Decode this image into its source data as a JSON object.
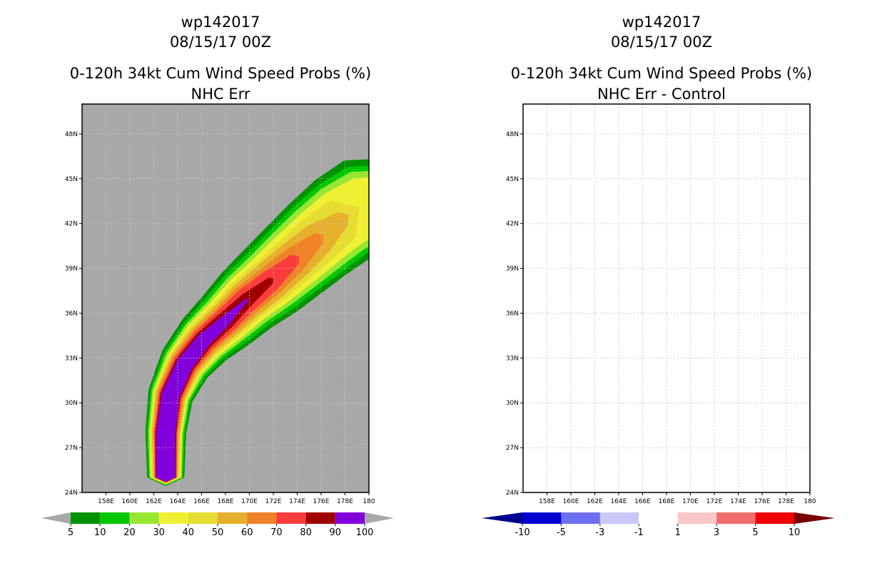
{
  "chart_data": [
    {
      "type": "heatmap",
      "title_lines": [
        "wp142017",
        "08/15/17 00Z",
        "0-120h 34kt Cum Wind Speed Probs (%)",
        "NHC Err"
      ],
      "xlim": [
        156,
        180
      ],
      "ylim": [
        24,
        50
      ],
      "x_ticks": [
        "158E",
        "160E",
        "162E",
        "164E",
        "166E",
        "168E",
        "170E",
        "172E",
        "174E",
        "176E",
        "178E",
        "180"
      ],
      "y_ticks": [
        "24N",
        "27N",
        "30N",
        "33N",
        "36N",
        "39N",
        "42N",
        "45N",
        "48N"
      ],
      "background": "#a8a8a8",
      "track": [
        {
          "lon": 163.0,
          "lat": 25.0
        },
        {
          "lon": 163.0,
          "lat": 28.0
        },
        {
          "lon": 163.4,
          "lat": 30.5
        },
        {
          "lon": 164.6,
          "lat": 32.6
        },
        {
          "lon": 166.2,
          "lat": 34.2
        },
        {
          "lon": 168.0,
          "lat": 35.5
        },
        {
          "lon": 169.8,
          "lat": 36.9
        },
        {
          "lon": 171.8,
          "lat": 38.2
        },
        {
          "lon": 173.8,
          "lat": 39.6
        },
        {
          "lon": 175.8,
          "lat": 41.0
        },
        {
          "lon": 177.8,
          "lat": 42.3
        },
        {
          "lon": 180.0,
          "lat": 43.3
        }
      ],
      "contour_bands": [
        {
          "level": 5,
          "color": "#009100",
          "widths": [
            1.55,
            1.7,
            1.9,
            2.2,
            2.5,
            2.8,
            3.1,
            3.4,
            3.6,
            3.8,
            4.0,
            4.2
          ]
        },
        {
          "level": 10,
          "color": "#00c800",
          "widths": [
            1.45,
            1.6,
            1.75,
            2.0,
            2.2,
            2.5,
            2.75,
            3.0,
            3.2,
            3.4,
            3.5,
            3.6
          ]
        },
        {
          "level": 20,
          "color": "#96e632",
          "widths": [
            1.35,
            1.45,
            1.6,
            1.8,
            2.0,
            2.2,
            2.45,
            2.65,
            2.85,
            3.0,
            3.1,
            3.1
          ]
        },
        {
          "level": 30,
          "color": "#f0f032",
          "widths": [
            1.25,
            1.35,
            1.45,
            1.6,
            1.8,
            1.95,
            2.15,
            2.3,
            2.45,
            2.55,
            2.6,
            2.5
          ]
        },
        {
          "level": 40,
          "color": "#e6dc32",
          "widths": [
            1.15,
            1.25,
            1.35,
            1.45,
            1.6,
            1.7,
            1.85,
            1.95,
            2.0,
            2.05,
            1.9,
            0
          ]
        },
        {
          "level": 50,
          "color": "#e6af2d",
          "widths": [
            1.05,
            1.15,
            1.25,
            1.3,
            1.4,
            1.5,
            1.6,
            1.65,
            1.6,
            1.4,
            0.7,
            0
          ]
        },
        {
          "level": 60,
          "color": "#f08228",
          "widths": [
            0.95,
            1.05,
            1.1,
            1.15,
            1.2,
            1.25,
            1.3,
            1.25,
            1.1,
            0.55,
            0,
            0
          ]
        },
        {
          "level": 70,
          "color": "#fa3c3c",
          "widths": [
            0.9,
            0.95,
            0.98,
            1.0,
            1.02,
            1.05,
            1.02,
            0.9,
            0.5,
            0,
            0,
            0
          ]
        },
        {
          "level": 80,
          "color": "#a00000",
          "widths": [
            0.85,
            0.88,
            0.86,
            0.85,
            0.8,
            0.75,
            0.6,
            0.3,
            0,
            0,
            0,
            0
          ]
        },
        {
          "level": 90,
          "color": "#8200dc",
          "widths": [
            0.8,
            0.8,
            0.75,
            0.7,
            0.6,
            0.45,
            0.12,
            0,
            0,
            0,
            0,
            0
          ]
        }
      ],
      "colorbar": {
        "labels": [
          "5",
          "10",
          "20",
          "30",
          "40",
          "50",
          "60",
          "70",
          "80",
          "90",
          "100"
        ],
        "colors": [
          "#009100",
          "#00c800",
          "#96e632",
          "#f0f032",
          "#e6dc32",
          "#e6af2d",
          "#f08228",
          "#fa3c3c",
          "#a00000",
          "#8200dc"
        ],
        "end_colors": [
          "#a8a8a8",
          "#a8a8a8"
        ]
      }
    },
    {
      "type": "heatmap",
      "title_lines": [
        "wp142017",
        "08/15/17 00Z",
        "0-120h 34kt Cum Wind Speed Probs (%)",
        "NHC Err - Control"
      ],
      "xlim": [
        156,
        180
      ],
      "ylim": [
        24,
        50
      ],
      "x_ticks": [
        "158E",
        "160E",
        "162E",
        "164E",
        "166E",
        "168E",
        "170E",
        "172E",
        "174E",
        "176E",
        "178E",
        "180"
      ],
      "y_ticks": [
        "24N",
        "27N",
        "30N",
        "33N",
        "36N",
        "39N",
        "42N",
        "45N",
        "48N"
      ],
      "grid": true,
      "values_note": "all differences between -1 and 1 (blank field)",
      "colorbar": {
        "labels": [
          "-10",
          "-5",
          "-3",
          "-1",
          "1",
          "3",
          "5",
          "10"
        ],
        "colors": [
          "#0000d2",
          "#6e6ef0",
          "#c8c8fa",
          "#ffffff",
          "#fac8c8",
          "#f06e6e",
          "#f00000"
        ],
        "end_colors": [
          "#00008c",
          "#780000"
        ]
      }
    }
  ]
}
